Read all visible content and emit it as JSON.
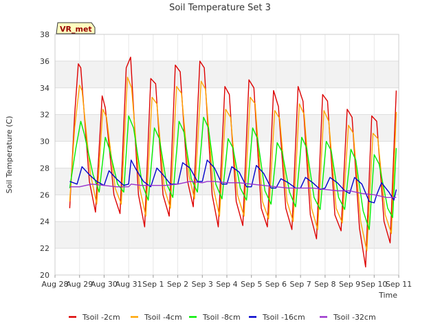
{
  "chart_data": {
    "type": "line",
    "title": "Soil Temperature Set 3",
    "xlabel": "Time",
    "ylabel": "Soil Temperature (C)",
    "badge": "VR_met",
    "ylim": [
      20,
      38
    ],
    "yticks": [
      20,
      22,
      24,
      26,
      28,
      30,
      32,
      34,
      36,
      38
    ],
    "xlim": [
      0,
      14
    ],
    "xticks": [
      {
        "pos": 0,
        "label": "Aug 28"
      },
      {
        "pos": 1,
        "label": "Aug 29"
      },
      {
        "pos": 2,
        "label": "Aug 30"
      },
      {
        "pos": 3,
        "label": "Aug 31"
      },
      {
        "pos": 4,
        "label": "Sep 1"
      },
      {
        "pos": 5,
        "label": "Sep 2"
      },
      {
        "pos": 6,
        "label": "Sep 3"
      },
      {
        "pos": 7,
        "label": "Sep 4"
      },
      {
        "pos": 8,
        "label": "Sep 5"
      },
      {
        "pos": 9,
        "label": "Sep 6"
      },
      {
        "pos": 10,
        "label": "Sep 7"
      },
      {
        "pos": 11,
        "label": "Sep 8"
      },
      {
        "pos": 12,
        "label": "Sep 9"
      },
      {
        "pos": 13,
        "label": "Sep 10"
      },
      {
        "pos": 14,
        "label": "Sep 11"
      }
    ],
    "grid": true,
    "legend_position": "bottom",
    "series": [
      {
        "name": "Tsoil -2cm",
        "color": "#dd0000",
        "x": [
          0.6,
          0.8,
          0.95,
          1.05,
          1.4,
          1.65,
          1.92,
          2.05,
          2.4,
          2.65,
          2.9,
          3.08,
          3.4,
          3.65,
          3.9,
          4.1,
          4.4,
          4.65,
          4.9,
          5.1,
          5.4,
          5.63,
          5.9,
          6.08,
          6.4,
          6.65,
          6.92,
          7.1,
          7.38,
          7.65,
          7.9,
          8.1,
          8.4,
          8.65,
          8.9,
          9.1,
          9.4,
          9.65,
          9.9,
          10.1,
          10.4,
          10.65,
          10.9,
          11.1,
          11.4,
          11.65,
          11.9,
          12.1,
          12.4,
          12.65,
          12.9,
          13.1,
          13.4,
          13.65,
          13.9
        ],
        "y": [
          25.0,
          32.0,
          35.8,
          35.5,
          27.0,
          24.7,
          33.4,
          32.5,
          26.0,
          24.6,
          35.5,
          36.3,
          26.0,
          23.6,
          34.7,
          34.3,
          26.0,
          24.4,
          35.7,
          35.2,
          27.0,
          25.1,
          36.0,
          35.5,
          26.0,
          23.6,
          34.1,
          33.5,
          25.5,
          23.7,
          34.6,
          34.0,
          25.0,
          23.6,
          33.8,
          32.6,
          25.0,
          23.4,
          34.1,
          33.0,
          24.5,
          22.7,
          33.5,
          33.0,
          24.5,
          23.3,
          32.4,
          31.8,
          23.5,
          20.6,
          31.9,
          31.5,
          24.0,
          22.4,
          33.8
        ]
      },
      {
        "name": "Tsoil -4cm",
        "color": "#ffa500",
        "x": [
          0.6,
          0.8,
          1.0,
          1.1,
          1.45,
          1.7,
          1.95,
          2.1,
          2.45,
          2.7,
          2.95,
          3.12,
          3.45,
          3.7,
          3.95,
          4.15,
          4.45,
          4.7,
          4.95,
          5.15,
          5.45,
          5.68,
          5.95,
          6.13,
          6.45,
          6.7,
          6.95,
          7.15,
          7.43,
          7.7,
          7.95,
          8.15,
          8.45,
          8.7,
          8.95,
          9.15,
          9.45,
          9.7,
          9.95,
          10.15,
          10.45,
          10.7,
          10.95,
          11.15,
          11.45,
          11.7,
          11.95,
          12.15,
          12.45,
          12.7,
          12.95,
          13.15,
          13.45,
          13.7,
          13.9
        ],
        "y": [
          25.5,
          31.0,
          34.2,
          33.8,
          27.5,
          25.3,
          32.4,
          31.8,
          26.5,
          25.3,
          34.8,
          34.0,
          26.5,
          24.4,
          33.3,
          32.8,
          26.5,
          25.0,
          34.1,
          33.6,
          27.5,
          25.7,
          34.5,
          33.9,
          26.5,
          24.4,
          32.4,
          31.8,
          26.0,
          24.4,
          33.3,
          32.8,
          25.5,
          24.2,
          32.3,
          31.7,
          25.5,
          24.0,
          32.8,
          32.0,
          25.0,
          23.4,
          32.3,
          31.5,
          25.0,
          23.9,
          31.2,
          30.6,
          24.0,
          21.8,
          30.6,
          30.2,
          24.5,
          23.1,
          32.2
        ]
      },
      {
        "name": "Tsoil -8cm",
        "color": "#00ee00",
        "x": [
          0.6,
          0.85,
          1.05,
          1.2,
          1.55,
          1.8,
          2.05,
          2.2,
          2.55,
          2.8,
          3.0,
          3.2,
          3.55,
          3.8,
          4.05,
          4.25,
          4.55,
          4.8,
          5.05,
          5.25,
          5.55,
          5.8,
          6.05,
          6.25,
          6.55,
          6.8,
          7.05,
          7.25,
          7.55,
          7.8,
          8.05,
          8.25,
          8.55,
          8.8,
          9.05,
          9.25,
          9.55,
          9.8,
          10.05,
          10.25,
          10.55,
          10.8,
          11.05,
          11.25,
          11.55,
          11.8,
          12.05,
          12.25,
          12.55,
          12.8,
          13.0,
          13.2,
          13.55,
          13.75,
          13.9
        ],
        "y": [
          26.5,
          29.5,
          31.5,
          30.5,
          27.5,
          26.2,
          30.3,
          29.5,
          26.8,
          26.2,
          31.9,
          31.0,
          26.8,
          25.6,
          31.0,
          30.2,
          26.8,
          25.8,
          31.5,
          30.7,
          27.2,
          26.2,
          31.8,
          31.0,
          26.8,
          25.7,
          30.2,
          29.5,
          26.5,
          25.6,
          31.0,
          30.2,
          26.3,
          25.3,
          29.9,
          29.2,
          26.2,
          25.1,
          30.3,
          29.5,
          25.8,
          24.9,
          30.0,
          29.3,
          25.8,
          24.9,
          29.4,
          28.6,
          24.8,
          23.4,
          29.0,
          28.3,
          25.0,
          24.3,
          29.5
        ]
      },
      {
        "name": "Tsoil -16cm",
        "color": "#0000cc",
        "x": [
          0.6,
          0.9,
          1.1,
          1.4,
          1.7,
          2.0,
          2.2,
          2.5,
          2.8,
          3.0,
          3.1,
          3.3,
          3.6,
          3.9,
          4.15,
          4.4,
          4.7,
          5.0,
          5.2,
          5.5,
          5.8,
          6.0,
          6.2,
          6.5,
          6.8,
          7.0,
          7.2,
          7.5,
          7.8,
          8.0,
          8.2,
          8.5,
          8.8,
          9.0,
          9.2,
          9.5,
          9.8,
          10.0,
          10.2,
          10.5,
          10.8,
          11.0,
          11.2,
          11.5,
          11.8,
          12.0,
          12.2,
          12.5,
          12.8,
          13.0,
          13.1,
          13.3,
          13.6,
          13.8,
          13.9
        ],
        "y": [
          27.0,
          26.8,
          28.1,
          27.5,
          27.0,
          26.7,
          27.8,
          27.2,
          26.7,
          26.8,
          28.6,
          27.9,
          27.0,
          26.6,
          28.0,
          27.5,
          26.8,
          26.8,
          28.4,
          28.0,
          27.0,
          27.0,
          28.6,
          28.0,
          26.8,
          26.8,
          28.1,
          27.7,
          26.6,
          26.6,
          28.2,
          27.6,
          26.5,
          26.5,
          27.2,
          26.9,
          26.5,
          26.5,
          27.3,
          26.9,
          26.4,
          26.5,
          27.3,
          26.9,
          26.3,
          26.1,
          27.3,
          26.8,
          25.5,
          25.4,
          26.0,
          26.9,
          26.2,
          25.6,
          26.4
        ]
      },
      {
        "name": "Tsoil -32cm",
        "color": "#9933cc",
        "x": [
          0.6,
          1.0,
          1.5,
          2.0,
          2.5,
          3.0,
          3.1,
          3.5,
          4.0,
          4.5,
          5.0,
          5.5,
          6.0,
          6.2,
          6.5,
          7.0,
          7.5,
          8.0,
          8.5,
          9.0,
          9.5,
          10.0,
          10.5,
          11.0,
          11.5,
          12.0,
          12.5,
          13.0,
          13.5,
          13.9
        ],
        "y": [
          26.6,
          26.6,
          26.8,
          26.7,
          26.6,
          26.6,
          26.8,
          26.7,
          26.7,
          26.7,
          26.8,
          27.0,
          26.9,
          27.0,
          27.0,
          26.9,
          26.9,
          26.8,
          26.7,
          26.6,
          26.5,
          26.5,
          26.5,
          26.4,
          26.3,
          26.3,
          26.1,
          26.0,
          25.8,
          25.8
        ]
      }
    ]
  }
}
